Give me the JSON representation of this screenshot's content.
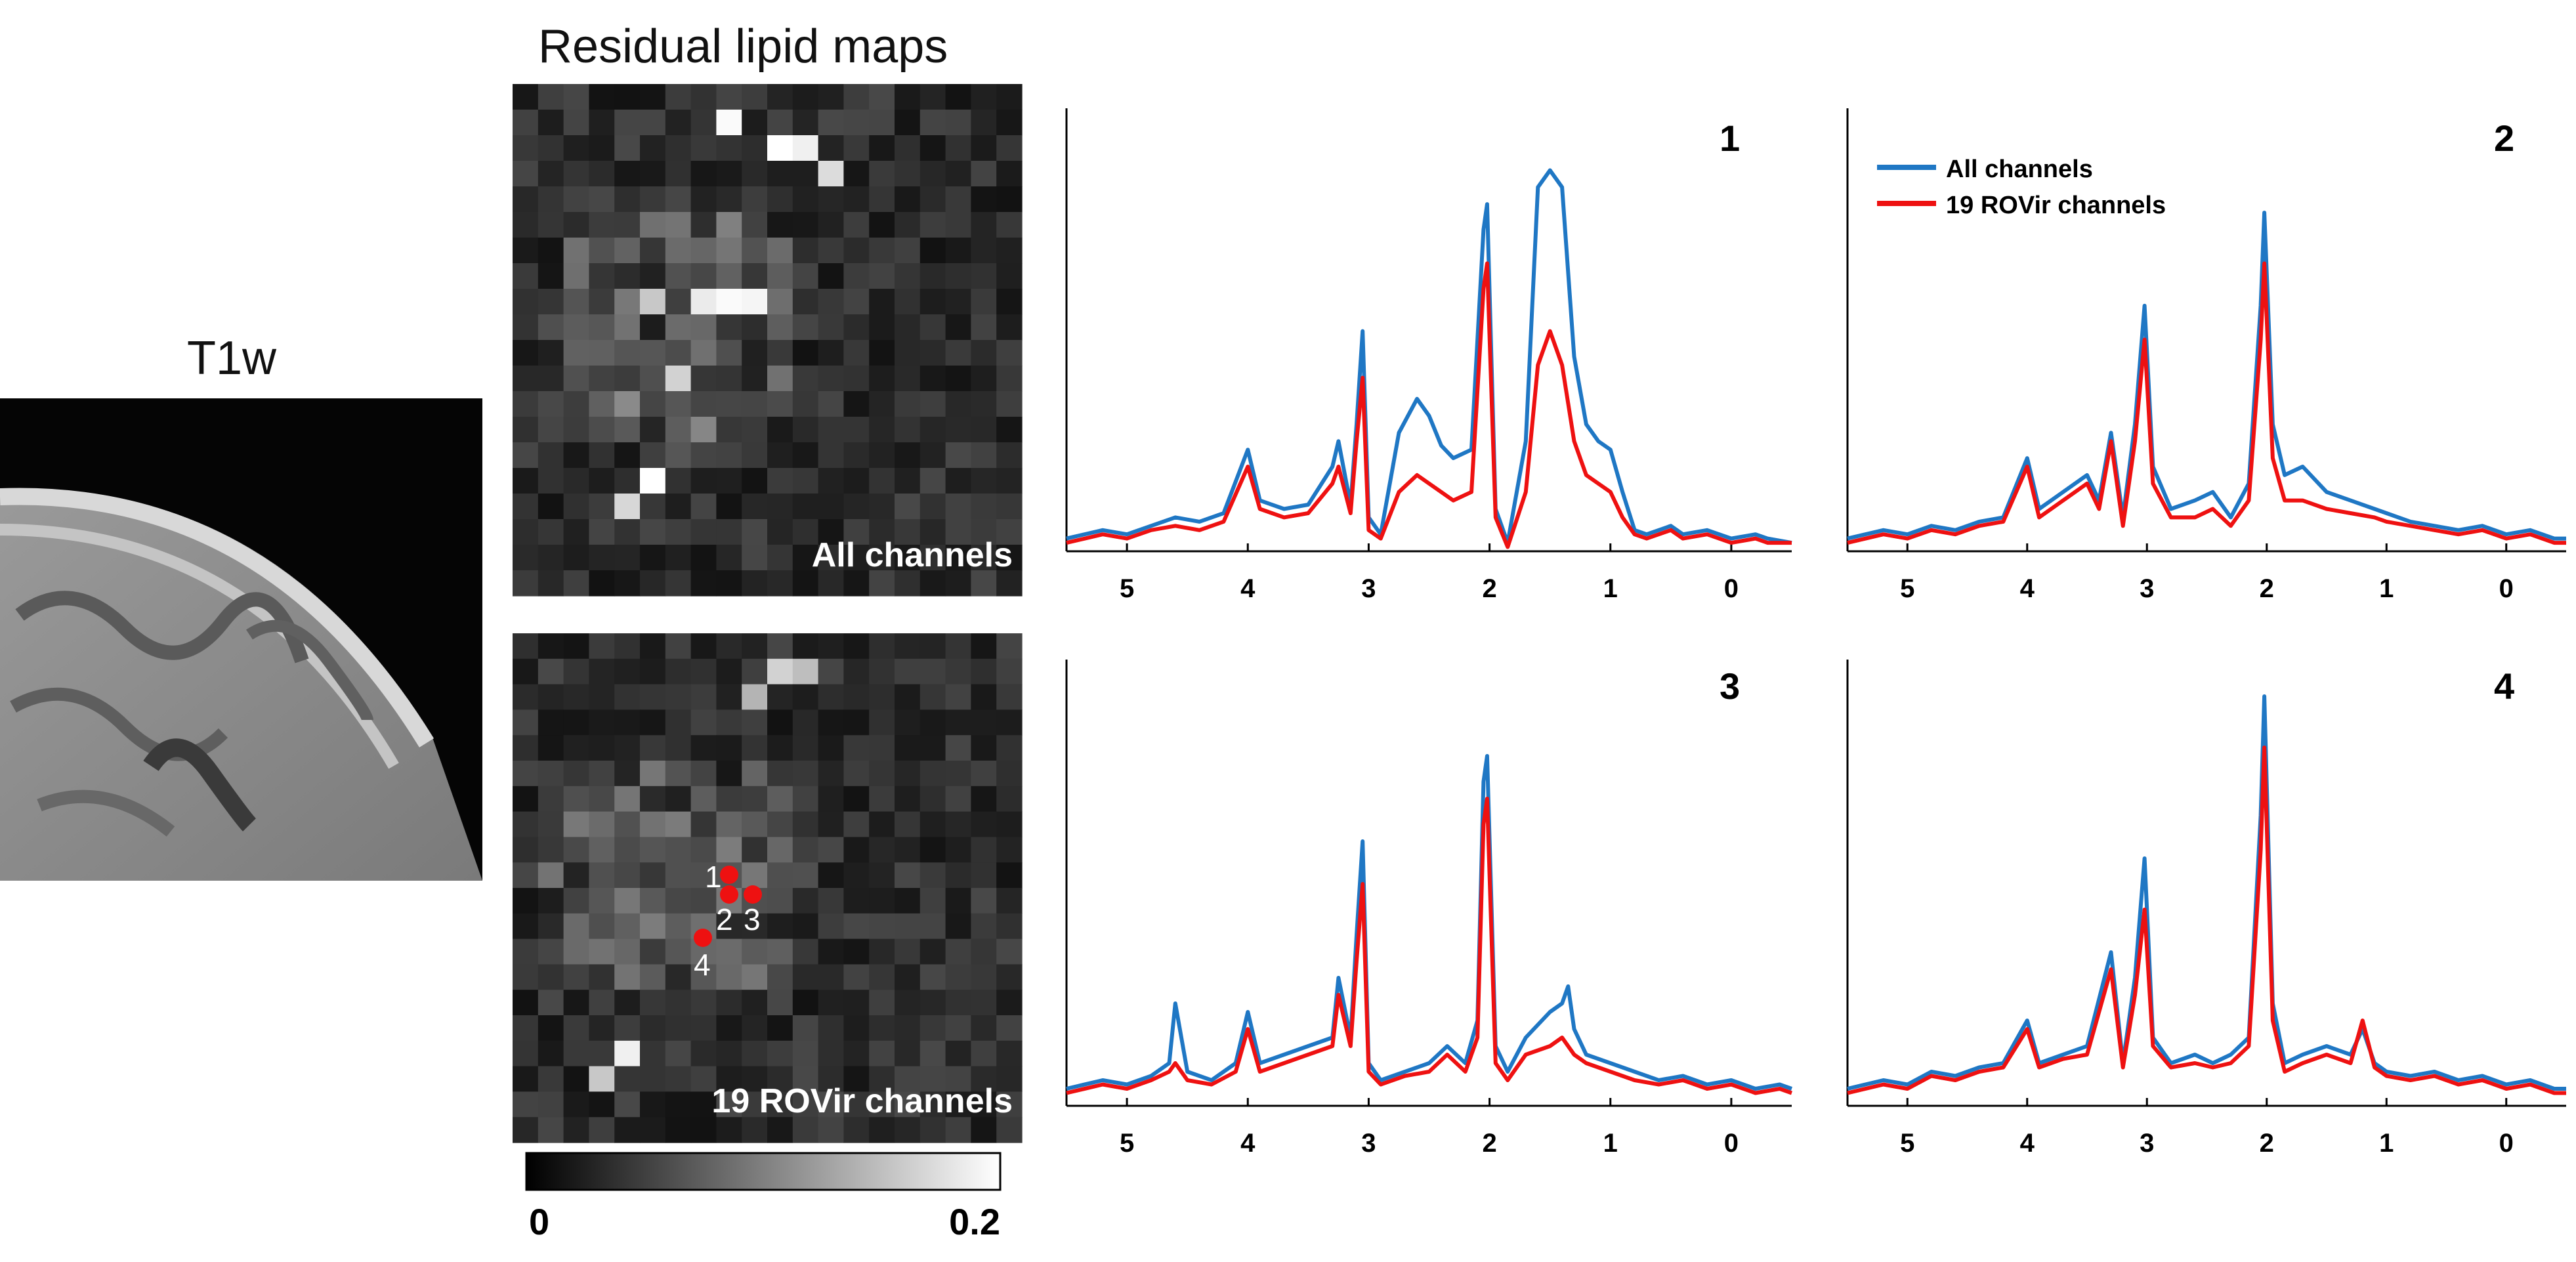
{
  "figure": {
    "t1w_title": "T1w",
    "lipid_title": "Residual lipid maps",
    "map_top_label": "All channels",
    "map_bottom_label": "19 ROVir channels",
    "colorbar": {
      "min_label": "0",
      "max_label": "0.2"
    },
    "voxel_labels": [
      "1",
      "2",
      "3",
      "4"
    ]
  },
  "colors": {
    "all_channels": "#1f77c4",
    "rovir": "#ee1111",
    "voxel_marker": "#ee1111"
  },
  "legend": {
    "entries": [
      "All channels",
      "19 ROVir channels"
    ],
    "placement": "top-left of panel 2"
  },
  "chart_data": [
    {
      "type": "line",
      "panel": "1",
      "xlabel": "",
      "ylabel": "",
      "xlim": [
        5.5,
        -0.5
      ],
      "xticks": [
        5,
        4,
        3,
        2,
        1,
        0
      ],
      "series": [
        {
          "name": "All channels",
          "x": [
            5.5,
            5.2,
            5.0,
            4.8,
            4.6,
            4.4,
            4.2,
            4.0,
            3.9,
            3.7,
            3.5,
            3.3,
            3.25,
            3.15,
            3.1,
            3.05,
            3.0,
            2.9,
            2.75,
            2.6,
            2.5,
            2.4,
            2.3,
            2.15,
            2.05,
            2.02,
            1.95,
            1.85,
            1.7,
            1.6,
            1.5,
            1.4,
            1.3,
            1.2,
            1.1,
            1.0,
            0.9,
            0.8,
            0.7,
            0.6,
            0.5,
            0.4,
            0.2,
            0.0,
            -0.2,
            -0.3,
            -0.5
          ],
          "values": [
            0.03,
            0.05,
            0.04,
            0.06,
            0.08,
            0.07,
            0.09,
            0.24,
            0.12,
            0.1,
            0.11,
            0.2,
            0.26,
            0.11,
            0.3,
            0.52,
            0.08,
            0.04,
            0.28,
            0.36,
            0.32,
            0.25,
            0.22,
            0.24,
            0.76,
            0.82,
            0.1,
            0.02,
            0.26,
            0.86,
            0.9,
            0.86,
            0.46,
            0.3,
            0.26,
            0.24,
            0.14,
            0.05,
            0.04,
            0.05,
            0.06,
            0.04,
            0.05,
            0.03,
            0.04,
            0.03,
            0.02
          ]
        },
        {
          "name": "19 ROVir channels",
          "x": [
            5.5,
            5.2,
            5.0,
            4.8,
            4.6,
            4.4,
            4.2,
            4.0,
            3.9,
            3.7,
            3.5,
            3.3,
            3.25,
            3.15,
            3.1,
            3.05,
            3.0,
            2.9,
            2.75,
            2.6,
            2.5,
            2.4,
            2.3,
            2.15,
            2.05,
            2.02,
            1.95,
            1.85,
            1.7,
            1.6,
            1.5,
            1.4,
            1.3,
            1.2,
            1.1,
            1.0,
            0.9,
            0.8,
            0.7,
            0.6,
            0.5,
            0.4,
            0.2,
            0.0,
            -0.2,
            -0.3,
            -0.5
          ],
          "values": [
            0.02,
            0.04,
            0.03,
            0.05,
            0.06,
            0.05,
            0.07,
            0.2,
            0.1,
            0.08,
            0.09,
            0.16,
            0.2,
            0.09,
            0.26,
            0.41,
            0.05,
            0.03,
            0.14,
            0.18,
            0.16,
            0.14,
            0.12,
            0.14,
            0.62,
            0.68,
            0.08,
            0.01,
            0.14,
            0.44,
            0.52,
            0.44,
            0.26,
            0.18,
            0.16,
            0.14,
            0.08,
            0.04,
            0.03,
            0.04,
            0.05,
            0.03,
            0.04,
            0.02,
            0.03,
            0.02,
            0.02
          ]
        }
      ]
    },
    {
      "type": "line",
      "panel": "2",
      "xlabel": "",
      "ylabel": "",
      "xlim": [
        5.5,
        -0.5
      ],
      "xticks": [
        5,
        4,
        3,
        2,
        1,
        0
      ],
      "series": [
        {
          "name": "All channels",
          "x": [
            5.5,
            5.2,
            5.0,
            4.8,
            4.6,
            4.4,
            4.2,
            4.0,
            3.9,
            3.7,
            3.5,
            3.4,
            3.3,
            3.2,
            3.1,
            3.02,
            2.95,
            2.8,
            2.6,
            2.45,
            2.3,
            2.15,
            2.05,
            2.02,
            1.95,
            1.85,
            1.7,
            1.5,
            1.3,
            1.1,
            1.0,
            0.8,
            0.6,
            0.4,
            0.2,
            0.0,
            -0.2,
            -0.4,
            -0.5
          ],
          "values": [
            0.03,
            0.05,
            0.04,
            0.06,
            0.05,
            0.07,
            0.08,
            0.22,
            0.1,
            0.14,
            0.18,
            0.12,
            0.28,
            0.08,
            0.3,
            0.58,
            0.2,
            0.1,
            0.12,
            0.14,
            0.08,
            0.16,
            0.58,
            0.8,
            0.3,
            0.18,
            0.2,
            0.14,
            0.12,
            0.1,
            0.09,
            0.07,
            0.06,
            0.05,
            0.06,
            0.04,
            0.05,
            0.03,
            0.03
          ]
        },
        {
          "name": "19 ROVir channels",
          "x": [
            5.5,
            5.2,
            5.0,
            4.8,
            4.6,
            4.4,
            4.2,
            4.0,
            3.9,
            3.7,
            3.5,
            3.4,
            3.3,
            3.2,
            3.1,
            3.02,
            2.95,
            2.8,
            2.6,
            2.45,
            2.3,
            2.15,
            2.05,
            2.02,
            1.95,
            1.85,
            1.7,
            1.5,
            1.3,
            1.1,
            1.0,
            0.8,
            0.6,
            0.4,
            0.2,
            0.0,
            -0.2,
            -0.4,
            -0.5
          ],
          "values": [
            0.02,
            0.04,
            0.03,
            0.05,
            0.04,
            0.06,
            0.07,
            0.2,
            0.08,
            0.12,
            0.16,
            0.1,
            0.26,
            0.06,
            0.26,
            0.5,
            0.16,
            0.08,
            0.08,
            0.1,
            0.06,
            0.12,
            0.5,
            0.68,
            0.22,
            0.12,
            0.12,
            0.1,
            0.09,
            0.08,
            0.07,
            0.06,
            0.05,
            0.04,
            0.05,
            0.03,
            0.04,
            0.02,
            0.02
          ]
        }
      ]
    },
    {
      "type": "line",
      "panel": "3",
      "xlabel": "",
      "ylabel": "",
      "xlim": [
        5.5,
        -0.5
      ],
      "xticks": [
        5,
        4,
        3,
        2,
        1,
        0
      ],
      "series": [
        {
          "name": "All channels",
          "x": [
            5.5,
            5.2,
            5.0,
            4.8,
            4.65,
            4.6,
            4.5,
            4.3,
            4.1,
            4.0,
            3.9,
            3.7,
            3.5,
            3.3,
            3.25,
            3.15,
            3.1,
            3.05,
            3.0,
            2.9,
            2.7,
            2.5,
            2.35,
            2.2,
            2.1,
            2.05,
            2.02,
            1.95,
            1.85,
            1.7,
            1.5,
            1.4,
            1.35,
            1.3,
            1.2,
            1.0,
            0.8,
            0.6,
            0.4,
            0.2,
            0.0,
            -0.2,
            -0.4,
            -0.5
          ],
          "values": [
            0.04,
            0.06,
            0.05,
            0.07,
            0.1,
            0.24,
            0.08,
            0.06,
            0.1,
            0.22,
            0.1,
            0.12,
            0.14,
            0.16,
            0.3,
            0.16,
            0.4,
            0.62,
            0.1,
            0.06,
            0.08,
            0.1,
            0.14,
            0.1,
            0.2,
            0.76,
            0.82,
            0.14,
            0.08,
            0.16,
            0.22,
            0.24,
            0.28,
            0.18,
            0.12,
            0.1,
            0.08,
            0.06,
            0.07,
            0.05,
            0.06,
            0.04,
            0.05,
            0.04
          ]
        },
        {
          "name": "19 ROVir channels",
          "x": [
            5.5,
            5.2,
            5.0,
            4.8,
            4.65,
            4.6,
            4.5,
            4.3,
            4.1,
            4.0,
            3.9,
            3.7,
            3.5,
            3.3,
            3.25,
            3.15,
            3.1,
            3.05,
            3.0,
            2.9,
            2.7,
            2.5,
            2.35,
            2.2,
            2.1,
            2.05,
            2.02,
            1.95,
            1.85,
            1.7,
            1.5,
            1.4,
            1.35,
            1.3,
            1.2,
            1.0,
            0.8,
            0.6,
            0.4,
            0.2,
            0.0,
            -0.2,
            -0.4,
            -0.5
          ],
          "values": [
            0.03,
            0.05,
            0.04,
            0.06,
            0.08,
            0.1,
            0.06,
            0.05,
            0.08,
            0.18,
            0.08,
            0.1,
            0.12,
            0.14,
            0.26,
            0.14,
            0.34,
            0.52,
            0.08,
            0.05,
            0.07,
            0.08,
            0.12,
            0.08,
            0.16,
            0.66,
            0.72,
            0.1,
            0.06,
            0.12,
            0.14,
            0.16,
            0.14,
            0.12,
            0.1,
            0.08,
            0.06,
            0.05,
            0.06,
            0.04,
            0.05,
            0.03,
            0.04,
            0.03
          ]
        }
      ]
    },
    {
      "type": "line",
      "panel": "4",
      "xlabel": "",
      "ylabel": "",
      "xlim": [
        5.5,
        -0.5
      ],
      "xticks": [
        5,
        4,
        3,
        2,
        1,
        0
      ],
      "series": [
        {
          "name": "All channels",
          "x": [
            5.5,
            5.2,
            5.0,
            4.8,
            4.6,
            4.4,
            4.2,
            4.0,
            3.9,
            3.7,
            3.5,
            3.3,
            3.2,
            3.1,
            3.02,
            2.95,
            2.8,
            2.6,
            2.45,
            2.3,
            2.15,
            2.05,
            2.02,
            1.95,
            1.85,
            1.7,
            1.5,
            1.3,
            1.2,
            1.1,
            1.0,
            0.8,
            0.6,
            0.4,
            0.2,
            0.0,
            -0.2,
            -0.4,
            -0.5
          ],
          "values": [
            0.04,
            0.06,
            0.05,
            0.08,
            0.07,
            0.09,
            0.1,
            0.2,
            0.1,
            0.12,
            0.14,
            0.36,
            0.1,
            0.3,
            0.58,
            0.16,
            0.1,
            0.12,
            0.1,
            0.12,
            0.16,
            0.68,
            0.96,
            0.24,
            0.1,
            0.12,
            0.14,
            0.12,
            0.18,
            0.1,
            0.08,
            0.07,
            0.08,
            0.06,
            0.07,
            0.05,
            0.06,
            0.04,
            0.04
          ]
        },
        {
          "name": "19 ROVir channels",
          "x": [
            5.5,
            5.2,
            5.0,
            4.8,
            4.6,
            4.4,
            4.2,
            4.0,
            3.9,
            3.7,
            3.5,
            3.3,
            3.2,
            3.1,
            3.02,
            2.95,
            2.8,
            2.6,
            2.45,
            2.3,
            2.15,
            2.05,
            2.02,
            1.95,
            1.85,
            1.7,
            1.5,
            1.3,
            1.2,
            1.1,
            1.0,
            0.8,
            0.6,
            0.4,
            0.2,
            0.0,
            -0.2,
            -0.4,
            -0.5
          ],
          "values": [
            0.03,
            0.05,
            0.04,
            0.07,
            0.06,
            0.08,
            0.09,
            0.18,
            0.09,
            0.11,
            0.12,
            0.32,
            0.09,
            0.26,
            0.46,
            0.14,
            0.09,
            0.1,
            0.09,
            0.1,
            0.14,
            0.6,
            0.84,
            0.2,
            0.08,
            0.1,
            0.12,
            0.1,
            0.2,
            0.09,
            0.07,
            0.06,
            0.07,
            0.05,
            0.06,
            0.04,
            0.05,
            0.03,
            0.03
          ]
        }
      ]
    }
  ]
}
